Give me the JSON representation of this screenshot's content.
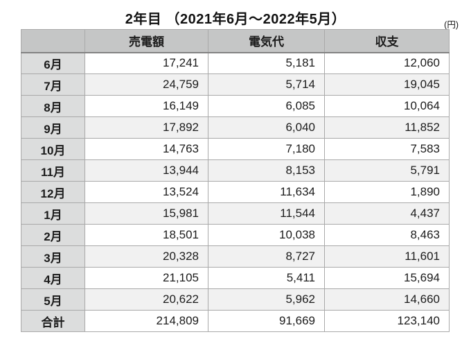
{
  "page": {
    "title": "2年目 （2021年6月～2022年5月）",
    "unit_label": "(円)"
  },
  "chart_data": {
    "type": "table",
    "title": "2年目 （2021年6月～2022年5月）",
    "unit": "円",
    "columns": [
      "",
      "売電額",
      "電気代",
      "収支"
    ],
    "rows": [
      [
        "6月",
        "17,241",
        "5,181",
        "12,060"
      ],
      [
        "7月",
        "24,759",
        "5,714",
        "19,045"
      ],
      [
        "8月",
        "16,149",
        "6,085",
        "10,064"
      ],
      [
        "9月",
        "17,892",
        "6,040",
        "11,852"
      ],
      [
        "10月",
        "14,763",
        "7,180",
        "7,583"
      ],
      [
        "11月",
        "13,944",
        "8,153",
        "5,791"
      ],
      [
        "12月",
        "13,524",
        "11,634",
        "1,890"
      ],
      [
        "1月",
        "15,981",
        "11,544",
        "4,437"
      ],
      [
        "2月",
        "18,501",
        "10,038",
        "8,463"
      ],
      [
        "3月",
        "20,328",
        "8,727",
        "11,601"
      ],
      [
        "4月",
        "21,105",
        "5,411",
        "15,694"
      ],
      [
        "5月",
        "20,622",
        "5,962",
        "14,660"
      ],
      [
        "合計",
        "214,809",
        "91,669",
        "123,140"
      ]
    ],
    "total_row_label": "合計",
    "layout": {
      "stripes": true,
      "header_bg": "#c5c6c6",
      "month_col_bg": "#dcdddd",
      "alt_row_bg": "#f1f1f1",
      "border_color": "#a9a9a9"
    }
  }
}
